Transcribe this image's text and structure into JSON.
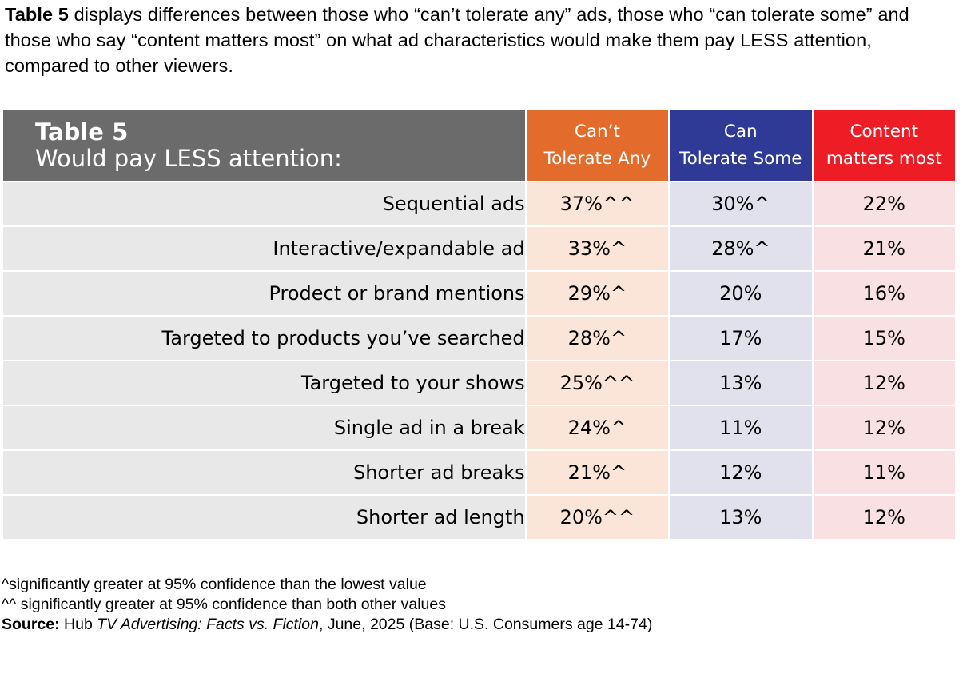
{
  "intro": {
    "bold_lead": "Table 5",
    "text": " displays differences between those who “can’t tolerate any” ads, those who “can tolerate some” and those who say “content matters most” on what ad characteristics would make them pay LESS attention, compared to other viewers."
  },
  "table": {
    "title": "Table 5",
    "subtitle": "Would pay LESS attention:",
    "columns": [
      {
        "line1": "Can’t",
        "line2": "Tolerate Any",
        "color": "#e36b2c"
      },
      {
        "line1": "Can",
        "line2": "Tolerate Some",
        "color": "#2f3a97"
      },
      {
        "line1": "Content",
        "line2": "matters most",
        "color": "#ee1c25"
      }
    ],
    "rows": [
      {
        "label": "Sequential ads",
        "values": [
          "37%^^",
          "30%^",
          "22%"
        ]
      },
      {
        "label": "Interactive/expandable ad",
        "values": [
          "33%^",
          "28%^",
          "21%"
        ]
      },
      {
        "label": "Prodect or brand mentions",
        "values": [
          "29%^",
          "20%",
          "16%"
        ]
      },
      {
        "label": "Targeted to products you’ve searched",
        "values": [
          "28%^",
          "17%",
          "15%"
        ]
      },
      {
        "label": "Targeted to your shows",
        "values": [
          "25%^^",
          "13%",
          "12%"
        ]
      },
      {
        "label": "Single ad in a break",
        "values": [
          "24%^",
          "11%",
          "12%"
        ]
      },
      {
        "label": "Shorter ad breaks",
        "values": [
          "21%^",
          "12%",
          "11%"
        ]
      },
      {
        "label": "Shorter ad length",
        "values": [
          "20%^^",
          "13%",
          "12%"
        ]
      }
    ]
  },
  "notes": {
    "note1": "^significantly greater at 95% confidence than the lowest value",
    "note2": "^^ significantly greater at 95% confidence than both other values",
    "source_label": "Source:",
    "source_pre": " Hub ",
    "source_title": "TV Advertising: Facts vs. Fiction",
    "source_post": ", June, 2025 (Base: U.S. Consumers age 14-74)"
  }
}
